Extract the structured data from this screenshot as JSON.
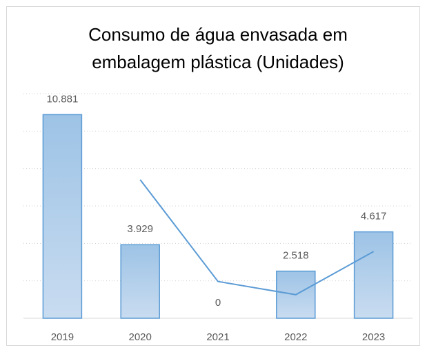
{
  "chart_data": {
    "type": "bar",
    "title": [
      "Consumo de água envasada em",
      "embalagem plástica (Unidades)"
    ],
    "categories": [
      "2019",
      "2020",
      "2021",
      "2022",
      "2023"
    ],
    "values": [
      10881,
      3929,
      0,
      2518,
      4617
    ],
    "value_labels": [
      "10.881",
      "3.929",
      "0",
      "2.518",
      "4.617"
    ],
    "color": "#9dc3e6",
    "series": [
      {
        "type": "line",
        "color": "#5b9bd5",
        "values": [
          null,
          7405,
          1964.5,
          1259,
          3567.5
        ]
      }
    ],
    "ylim": [
      0,
      12000
    ],
    "yticks": [
      0,
      2000,
      4000,
      6000,
      8000,
      10000,
      12000
    ],
    "grid": true
  }
}
